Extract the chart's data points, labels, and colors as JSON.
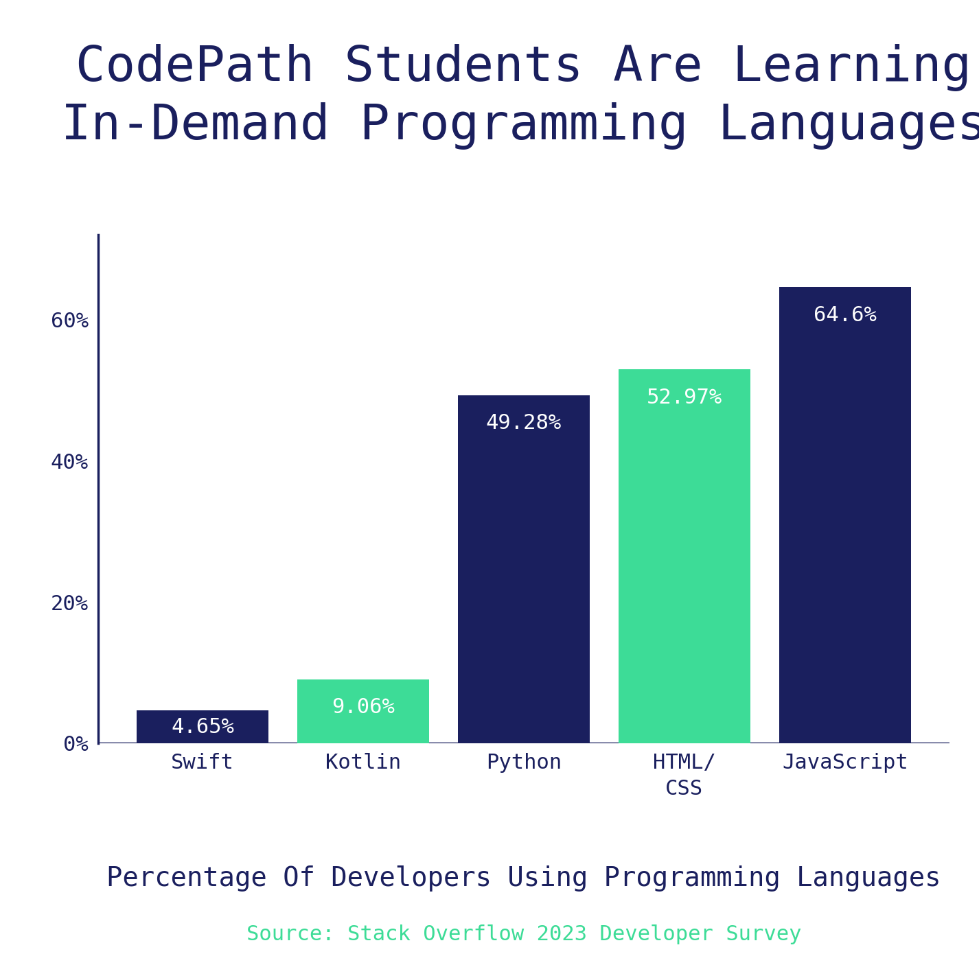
{
  "title": "CodePath Students Are Learning\nIn-Demand Programming Languages",
  "categories": [
    "Swift",
    "Kotlin",
    "Python",
    "HTML/\nCSS",
    "JavaScript"
  ],
  "values": [
    4.65,
    9.06,
    49.28,
    52.97,
    64.6
  ],
  "bar_colors": [
    "#1a1f5e",
    "#3ddc97",
    "#1a1f5e",
    "#3ddc97",
    "#1a1f5e"
  ],
  "bar_labels": [
    "4.65%",
    "9.06%",
    "49.28%",
    "52.97%",
    "64.6%"
  ],
  "xlabel": "Percentage Of Developers Using Programming Languages",
  "source": "Source: Stack Overflow 2023 Developer Survey",
  "title_color": "#1a1f5e",
  "xlabel_color": "#1a1f5e",
  "source_color": "#3ddc97",
  "tick_color": "#1a1f5e",
  "label_color": "#ffffff",
  "yticks": [
    0,
    20,
    40,
    60
  ],
  "ytick_labels": [
    "0%",
    "20%",
    "40%",
    "60%"
  ],
  "ylim": [
    0,
    72
  ],
  "background_color": "#ffffff",
  "title_fontsize": 52,
  "xlabel_fontsize": 28,
  "source_fontsize": 22,
  "tick_fontsize": 22,
  "bar_label_fontsize": 22,
  "axis_line_color": "#1a1f5e",
  "bar_width": 0.82
}
